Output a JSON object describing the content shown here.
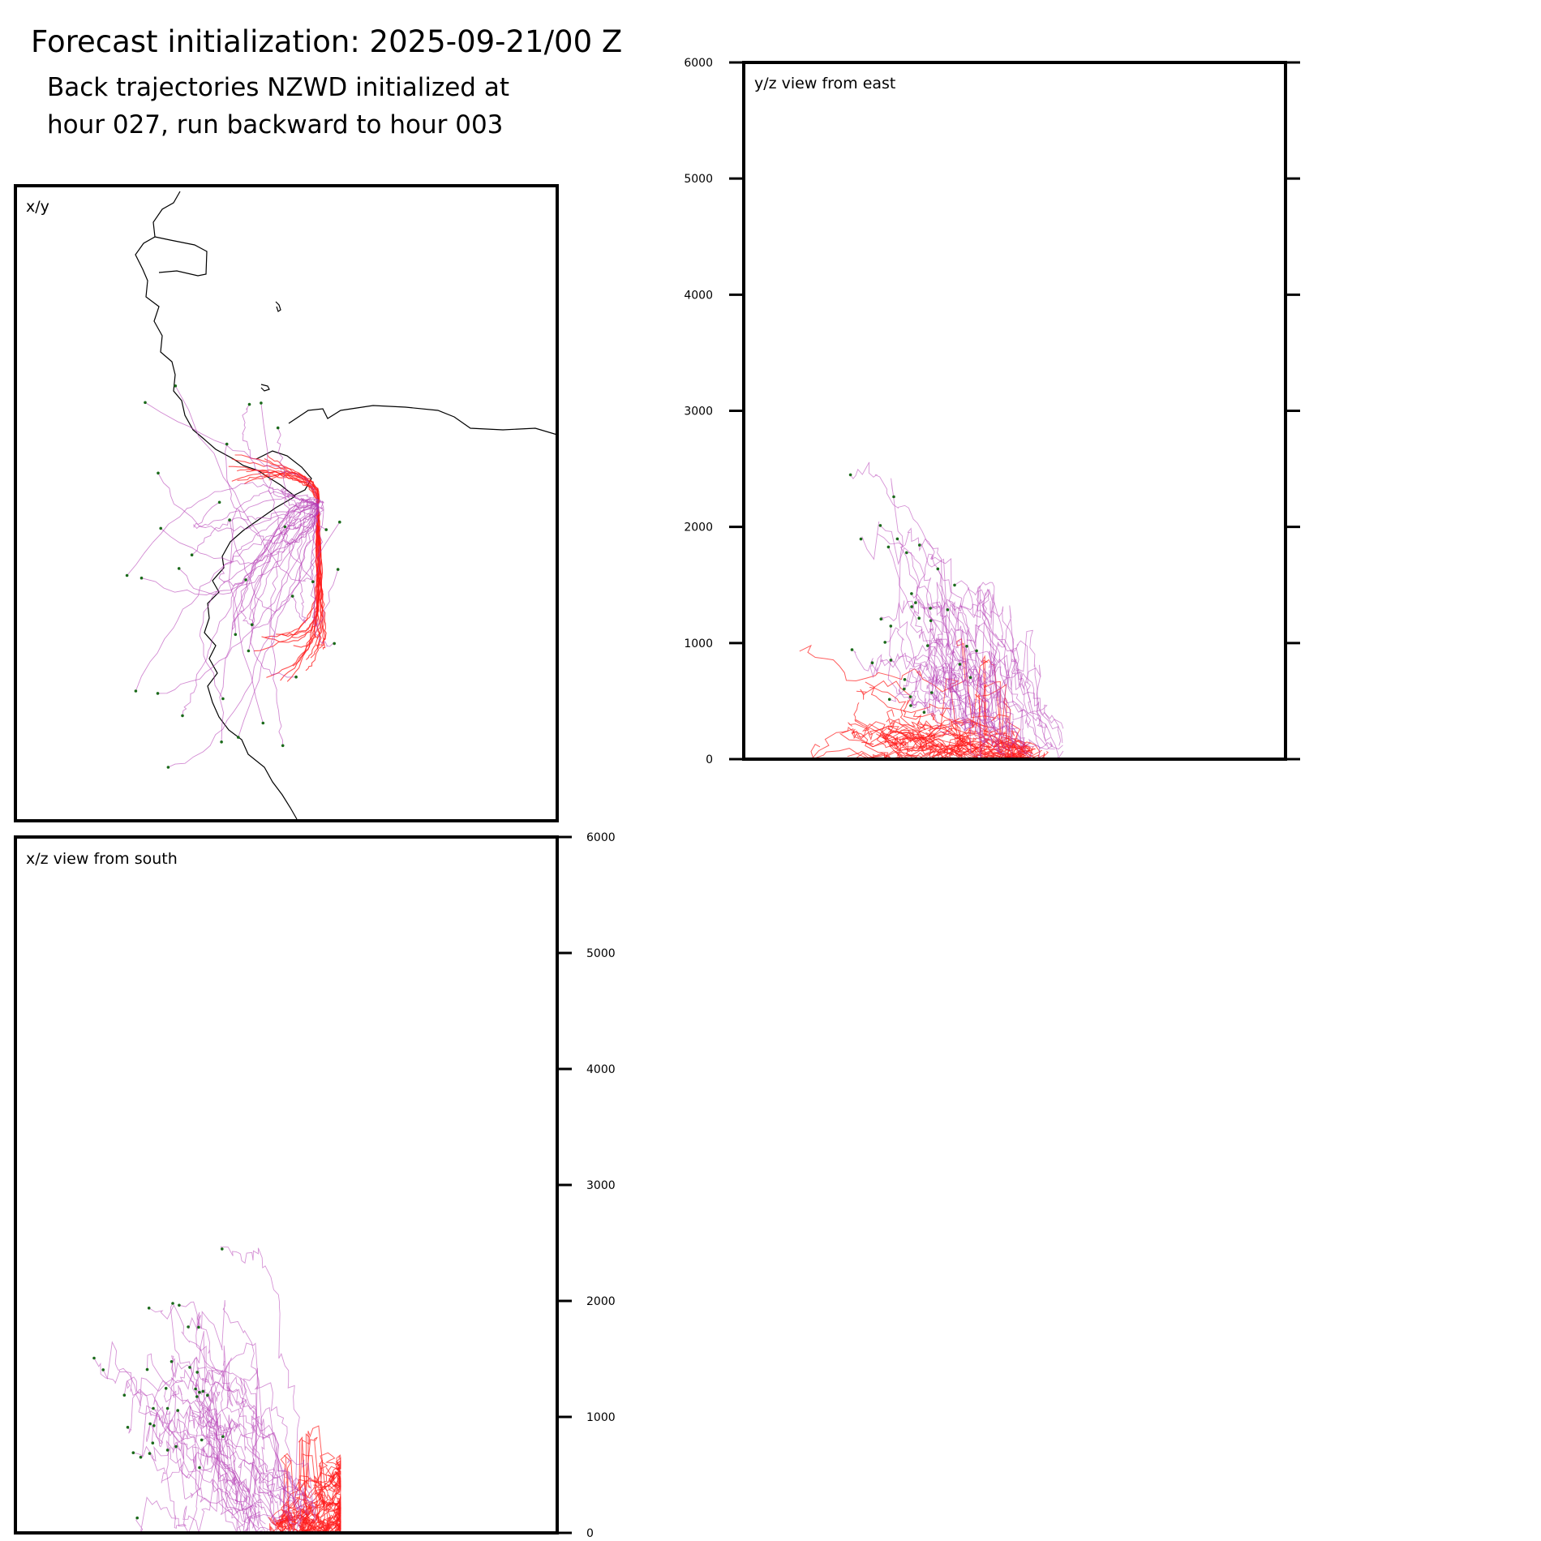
{
  "header": {
    "title": "Forecast initialization: 2025-09-21/00 Z",
    "subtitle_line1": "Back trajectories NZWD initialized at",
    "subtitle_line2": "hour 027, run backward to hour 003"
  },
  "colors": {
    "recent_trajectory": "#ff1a1a",
    "older_trajectory": "#b43cb4",
    "endpoint_marker": "#1a6a1a",
    "coastline": "#000000"
  },
  "chart_data": [
    {
      "type": "line",
      "panel": "x/y",
      "title": "x/y",
      "xlabel": "",
      "ylabel": "",
      "grid": false,
      "series_groups": [
        {
          "name": "",
          "count_shown": 30,
          "style": "red"
        },
        {
          "name": "",
          "count_shown": 35,
          "style": "magenta"
        }
      ],
      "features": [
        "coastline"
      ]
    },
    {
      "type": "line",
      "panel": "y/z",
      "title": "y/z view from east",
      "xlabel": "",
      "ylabel": "",
      "ylim": [
        0,
        6000
      ],
      "yticks": [
        "0",
        "1000",
        "2000",
        "3000",
        "4000",
        "5000",
        "6000"
      ],
      "grid": false,
      "approx_max_altitude": 2600,
      "low_level_cluster_altitude": [
        0,
        800
      ]
    },
    {
      "type": "line",
      "panel": "x/z",
      "title": "x/z view from south",
      "xlabel": "",
      "ylabel": "",
      "ylim": [
        0,
        6000
      ],
      "yticks": [
        "0",
        "1000",
        "2000",
        "3000",
        "4000",
        "5000",
        "6000"
      ],
      "grid": false,
      "approx_max_altitude": 2600,
      "low_level_cluster_altitude": [
        0,
        800
      ]
    }
  ]
}
